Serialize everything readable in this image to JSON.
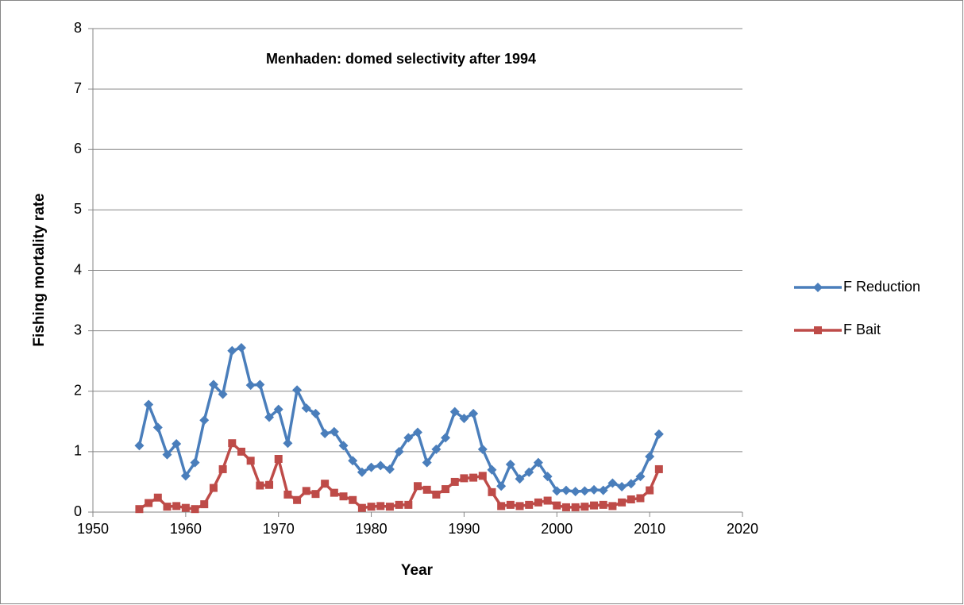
{
  "chart_data": {
    "type": "line",
    "title": "Menhaden: domed selectivity after 1994",
    "x_label": "Year",
    "y_label": "Fishing mortality rate",
    "x": [
      1955,
      1956,
      1957,
      1958,
      1959,
      1960,
      1961,
      1962,
      1963,
      1964,
      1965,
      1966,
      1967,
      1968,
      1969,
      1970,
      1971,
      1972,
      1973,
      1974,
      1975,
      1976,
      1977,
      1978,
      1979,
      1980,
      1981,
      1982,
      1983,
      1984,
      1985,
      1986,
      1987,
      1988,
      1989,
      1990,
      1991,
      1992,
      1993,
      1994,
      1995,
      1996,
      1997,
      1998,
      1999,
      2000,
      2001,
      2002,
      2003,
      2004,
      2005,
      2006,
      2007,
      2008,
      2009,
      2010,
      2011
    ],
    "series": [
      {
        "name": "F Reduction",
        "color": "#4a7ebb",
        "marker": "diamond",
        "values": [
          1.1,
          1.78,
          1.4,
          0.95,
          1.13,
          0.6,
          0.82,
          1.52,
          2.11,
          1.95,
          2.67,
          2.72,
          2.1,
          2.11,
          1.57,
          1.7,
          1.14,
          2.02,
          1.72,
          1.63,
          1.3,
          1.33,
          1.1,
          0.85,
          0.66,
          0.74,
          0.77,
          0.71,
          1.0,
          1.23,
          1.32,
          0.82,
          1.04,
          1.23,
          1.66,
          1.55,
          1.63,
          1.04,
          0.7,
          0.43,
          0.79,
          0.55,
          0.66,
          0.82,
          0.59,
          0.35,
          0.36,
          0.34,
          0.35,
          0.37,
          0.36,
          0.48,
          0.42,
          0.47,
          0.59,
          0.92,
          1.29
        ]
      },
      {
        "name": "F Bait",
        "color": "#be4b48",
        "marker": "square",
        "values": [
          0.05,
          0.15,
          0.24,
          0.09,
          0.1,
          0.07,
          0.05,
          0.13,
          0.4,
          0.71,
          1.14,
          1.0,
          0.85,
          0.44,
          0.45,
          0.88,
          0.29,
          0.2,
          0.35,
          0.3,
          0.47,
          0.32,
          0.26,
          0.2,
          0.07,
          0.09,
          0.1,
          0.09,
          0.12,
          0.12,
          0.43,
          0.37,
          0.29,
          0.38,
          0.5,
          0.56,
          0.57,
          0.6,
          0.33,
          0.1,
          0.12,
          0.1,
          0.12,
          0.16,
          0.19,
          0.11,
          0.08,
          0.08,
          0.09,
          0.11,
          0.12,
          0.1,
          0.16,
          0.21,
          0.23,
          0.36,
          0.71
        ]
      }
    ],
    "xlim": [
      1950,
      2020
    ],
    "xticks": [
      1950,
      1960,
      1970,
      1980,
      1990,
      2000,
      2010,
      2020
    ],
    "ylim": [
      0,
      8
    ],
    "yticks": [
      0,
      1,
      2,
      3,
      4,
      5,
      6,
      7,
      8
    ],
    "grid": true,
    "legend": "right"
  }
}
